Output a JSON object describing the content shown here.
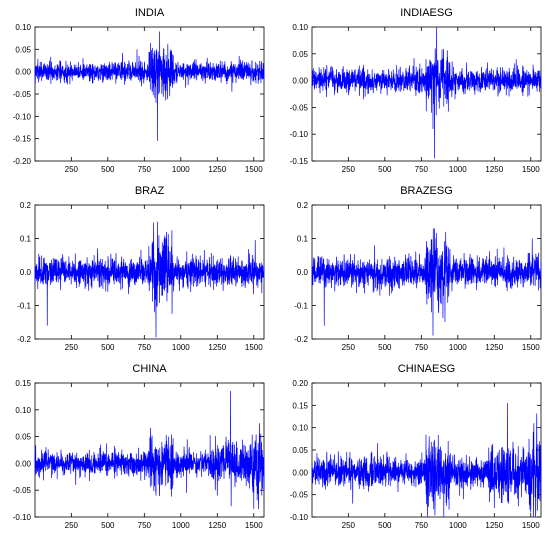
{
  "chart_data": [
    {
      "type": "line",
      "title": "INDIA",
      "xlabel": "",
      "ylabel": "",
      "xlim": [
        1,
        1570
      ],
      "ylim": [
        -0.2,
        0.1
      ],
      "x_ticks": [
        250,
        500,
        750,
        1000,
        1250,
        1500
      ],
      "y_ticks": [
        -0.2,
        -0.15,
        -0.1,
        -0.05,
        0.0,
        0.05,
        0.1
      ],
      "y_tick_labels": [
        "-0.20",
        "-0.15",
        "-0.10",
        "-0.05",
        "0.00",
        "0.05",
        "0.10"
      ],
      "grid": false,
      "line_color": "#0000ff",
      "n_points": 1570,
      "series": [
        {
          "values": [
            {
              "x": 100,
              "y": 0.025
            },
            {
              "x": 200,
              "y": -0.02
            },
            {
              "x": 330,
              "y": 0.03
            },
            {
              "x": 600,
              "y": 0.042
            },
            {
              "x": 700,
              "y": 0.05
            },
            {
              "x": 830,
              "y": -0.07
            },
            {
              "x": 840,
              "y": -0.155
            },
            {
              "x": 845,
              "y": 0.045
            },
            {
              "x": 855,
              "y": 0.09
            },
            {
              "x": 870,
              "y": -0.05
            },
            {
              "x": 1050,
              "y": -0.03
            },
            {
              "x": 1270,
              "y": 0.025
            },
            {
              "x": 1350,
              "y": -0.045
            },
            {
              "x": 1400,
              "y": 0.035
            },
            {
              "x": 1480,
              "y": -0.03
            }
          ]
        }
      ]
    },
    {
      "type": "line",
      "title": "INDIAESG",
      "xlabel": "",
      "ylabel": "",
      "xlim": [
        1,
        1570
      ],
      "ylim": [
        -0.15,
        0.1
      ],
      "x_ticks": [
        250,
        500,
        750,
        1000,
        1250,
        1500
      ],
      "y_ticks": [
        -0.15,
        -0.1,
        -0.05,
        0.0,
        0.05,
        0.1
      ],
      "y_tick_labels": [
        "-0.15",
        "-0.10",
        "-0.05",
        "0.00",
        "0.05",
        "0.10"
      ],
      "grid": false,
      "line_color": "#0000ff",
      "n_points": 1570,
      "series": [
        {
          "values": [
            {
              "x": 700,
              "y": 0.042
            },
            {
              "x": 820,
              "y": -0.06
            },
            {
              "x": 830,
              "y": -0.09
            },
            {
              "x": 840,
              "y": -0.145
            },
            {
              "x": 845,
              "y": 0.06
            },
            {
              "x": 855,
              "y": 0.1
            },
            {
              "x": 870,
              "y": -0.04
            },
            {
              "x": 1050,
              "y": -0.025
            },
            {
              "x": 1270,
              "y": 0.025
            },
            {
              "x": 1400,
              "y": 0.04
            },
            {
              "x": 1480,
              "y": -0.03
            }
          ]
        }
      ]
    },
    {
      "type": "line",
      "title": "BRAZ",
      "xlabel": "",
      "ylabel": "",
      "xlim": [
        1,
        1570
      ],
      "ylim": [
        -0.2,
        0.2
      ],
      "x_ticks": [
        250,
        500,
        750,
        1000,
        1250,
        1500
      ],
      "y_ticks": [
        -0.2,
        -0.1,
        0.0,
        0.1,
        0.2
      ],
      "y_tick_labels": [
        "-0.2",
        "-0.1",
        "0.0",
        "0.1",
        "0.2"
      ],
      "grid": false,
      "line_color": "#0000ff",
      "n_points": 1570,
      "series": [
        {
          "values": [
            {
              "x": 85,
              "y": -0.16
            },
            {
              "x": 430,
              "y": 0.07
            },
            {
              "x": 600,
              "y": -0.05
            },
            {
              "x": 820,
              "y": -0.12
            },
            {
              "x": 830,
              "y": -0.195
            },
            {
              "x": 840,
              "y": 0.15
            },
            {
              "x": 850,
              "y": 0.11
            },
            {
              "x": 870,
              "y": -0.07
            },
            {
              "x": 1050,
              "y": -0.05
            },
            {
              "x": 1340,
              "y": 0.05
            },
            {
              "x": 1510,
              "y": 0.095
            },
            {
              "x": 1520,
              "y": -0.04
            }
          ]
        }
      ]
    },
    {
      "type": "line",
      "title": "BRAZESG",
      "xlabel": "",
      "ylabel": "",
      "xlim": [
        1,
        1570
      ],
      "ylim": [
        -0.2,
        0.2
      ],
      "x_ticks": [
        250,
        500,
        750,
        1000,
        1250,
        1500
      ],
      "y_ticks": [
        -0.2,
        -0.1,
        0.0,
        0.1,
        0.2
      ],
      "y_tick_labels": [
        "-0.2",
        "-0.1",
        "0.0",
        "0.1",
        "0.2"
      ],
      "grid": false,
      "line_color": "#0000ff",
      "n_points": 1570,
      "series": [
        {
          "values": [
            {
              "x": 85,
              "y": -0.16
            },
            {
              "x": 430,
              "y": 0.08
            },
            {
              "x": 600,
              "y": -0.05
            },
            {
              "x": 820,
              "y": -0.12
            },
            {
              "x": 830,
              "y": -0.19
            },
            {
              "x": 840,
              "y": 0.13
            },
            {
              "x": 850,
              "y": 0.1
            },
            {
              "x": 870,
              "y": -0.07
            },
            {
              "x": 1050,
              "y": -0.05
            },
            {
              "x": 1340,
              "y": 0.05
            },
            {
              "x": 1510,
              "y": 0.1
            },
            {
              "x": 1520,
              "y": -0.04
            }
          ]
        }
      ]
    },
    {
      "type": "line",
      "title": "CHINA",
      "xlabel": "",
      "ylabel": "",
      "xlim": [
        1,
        1570
      ],
      "ylim": [
        -0.1,
        0.15
      ],
      "x_ticks": [
        250,
        500,
        750,
        1000,
        1250,
        1500
      ],
      "y_ticks": [
        -0.1,
        -0.05,
        0.0,
        0.05,
        0.1,
        0.15
      ],
      "y_tick_labels": [
        "-0.10",
        "-0.05",
        "0.00",
        "0.05",
        "0.10",
        "0.15"
      ],
      "grid": false,
      "line_color": "#0000ff",
      "n_points": 1570,
      "series": [
        {
          "values": [
            {
              "x": 280,
              "y": -0.04
            },
            {
              "x": 450,
              "y": 0.035
            },
            {
              "x": 830,
              "y": -0.06
            },
            {
              "x": 870,
              "y": 0.04
            },
            {
              "x": 1040,
              "y": -0.055
            },
            {
              "x": 1250,
              "y": -0.06
            },
            {
              "x": 1310,
              "y": 0.05
            },
            {
              "x": 1340,
              "y": 0.135
            },
            {
              "x": 1345,
              "y": -0.08
            },
            {
              "x": 1500,
              "y": -0.085
            },
            {
              "x": 1540,
              "y": 0.075
            },
            {
              "x": 1555,
              "y": -0.06
            }
          ]
        }
      ]
    },
    {
      "type": "line",
      "title": "CHINAESG",
      "xlabel": "",
      "ylabel": "",
      "xlim": [
        1,
        1570
      ],
      "ylim": [
        -0.1,
        0.2
      ],
      "x_ticks": [
        250,
        500,
        750,
        1000,
        1250,
        1500
      ],
      "y_ticks": [
        -0.1,
        -0.05,
        0.0,
        0.05,
        0.1,
        0.15,
        0.2
      ],
      "y_tick_labels": [
        "-0.10",
        "-0.05",
        "0.00",
        "0.05",
        "0.10",
        "0.15",
        "0.20"
      ],
      "grid": false,
      "line_color": "#0000ff",
      "n_points": 1570,
      "series": [
        {
          "values": [
            {
              "x": 280,
              "y": -0.07
            },
            {
              "x": 450,
              "y": 0.065
            },
            {
              "x": 830,
              "y": -0.065
            },
            {
              "x": 870,
              "y": 0.05
            },
            {
              "x": 1040,
              "y": -0.06
            },
            {
              "x": 1250,
              "y": -0.08
            },
            {
              "x": 1300,
              "y": 0.055
            },
            {
              "x": 1340,
              "y": 0.155
            },
            {
              "x": 1345,
              "y": -0.07
            },
            {
              "x": 1500,
              "y": -0.09
            },
            {
              "x": 1540,
              "y": 0.09
            },
            {
              "x": 1555,
              "y": -0.06
            }
          ]
        }
      ]
    }
  ]
}
